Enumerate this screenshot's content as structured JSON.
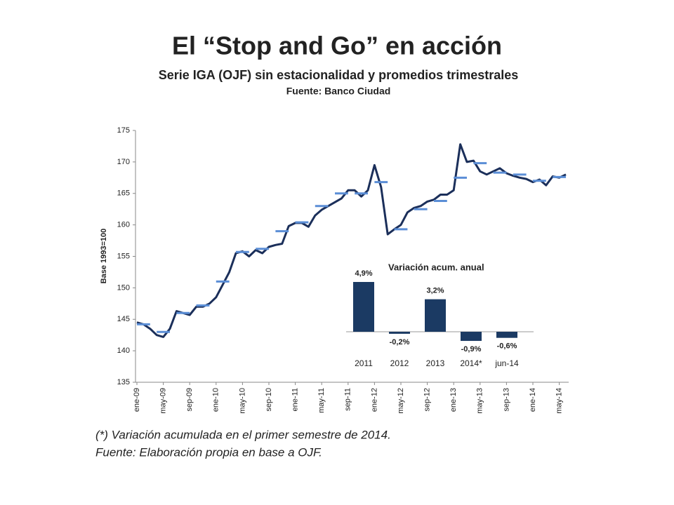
{
  "header": {
    "title": "El “Stop and Go” en acción",
    "subtitle": "Serie IGA (OJF) sin estacionalidad y promedios trimestrales",
    "source": "Fuente: Banco Ciudad"
  },
  "chart_data": [
    {
      "type": "line",
      "y_label": "Base 1993=100",
      "categories": [
        "ene-09",
        null,
        null,
        null,
        "may-09",
        null,
        null,
        null,
        "sep-09",
        null,
        null,
        null,
        "ene-10",
        null,
        null,
        null,
        "may-10",
        null,
        null,
        null,
        "sep-10",
        null,
        null,
        null,
        "ene-11",
        null,
        null,
        null,
        "may-11",
        null,
        null,
        null,
        "sep-11",
        null,
        null,
        null,
        "ene-12",
        null,
        null,
        null,
        "may-12",
        null,
        null,
        null,
        "sep-12",
        null,
        null,
        null,
        "ene-13",
        null,
        null,
        null,
        "may-13",
        null,
        null,
        null,
        "sep-13",
        null,
        null,
        null,
        "ene-14",
        null,
        null,
        null,
        "may-14",
        null
      ],
      "ylim": [
        135,
        175
      ],
      "yticks": [
        135,
        140,
        145,
        150,
        155,
        160,
        165,
        170,
        175
      ],
      "series": [
        {
          "color": "#1b2f5a",
          "style": "line",
          "values": [
            144.5,
            144.2,
            143.5,
            142.5,
            142.2,
            143.5,
            146.3,
            146.0,
            145.7,
            147.0,
            147.0,
            147.5,
            148.5,
            150.5,
            152.5,
            155.5,
            155.8,
            155.0,
            156.0,
            155.5,
            156.5,
            156.8,
            157.0,
            159.8,
            160.3,
            160.3,
            159.7,
            161.5,
            162.4,
            163.0,
            163.6,
            164.2,
            165.5,
            165.5,
            164.5,
            165.5,
            169.5,
            166.0,
            158.5,
            159.3,
            160.0,
            162.0,
            162.7,
            163.0,
            163.7,
            164.0,
            164.8,
            164.8,
            165.5,
            172.8,
            170.0,
            170.2,
            168.5,
            168.0,
            168.5,
            169.0,
            168.2,
            167.8,
            167.5,
            167.3,
            166.8,
            167.2,
            166.3,
            167.7,
            167.5,
            168.0
          ]
        },
        {
          "color": "#5b8ed6",
          "style": "dash",
          "values": [
            null,
            144.2,
            null,
            null,
            143.0,
            null,
            null,
            146.0,
            null,
            null,
            147.2,
            null,
            null,
            151.0,
            null,
            null,
            155.7,
            null,
            null,
            156.2,
            null,
            null,
            159.0,
            null,
            null,
            160.4,
            null,
            null,
            163.0,
            null,
            null,
            165.0,
            null,
            null,
            165.0,
            null,
            null,
            166.8,
            null,
            null,
            159.3,
            null,
            null,
            162.5,
            null,
            null,
            163.8,
            null,
            null,
            167.5,
            null,
            null,
            169.8,
            null,
            null,
            168.3,
            null,
            null,
            168.0,
            null,
            null,
            167.0,
            null,
            null,
            167.6,
            null
          ]
        }
      ]
    },
    {
      "type": "bar",
      "title": "Variación acum. anual",
      "categories": [
        "2011",
        "2012",
        "2013",
        "2014*",
        "jun-14"
      ],
      "values": [
        4.9,
        -0.2,
        3.2,
        -0.9,
        -0.6
      ],
      "value_labels": [
        "4,9%",
        "-0,2%",
        "3,2%",
        "-0,9%",
        "-0,6%"
      ],
      "color": "#1b3a63"
    }
  ],
  "notes": [
    "(*) Variación acumulada en el primer semestre de 2014.",
    "Fuente: Elaboración propia en base a OJF."
  ]
}
